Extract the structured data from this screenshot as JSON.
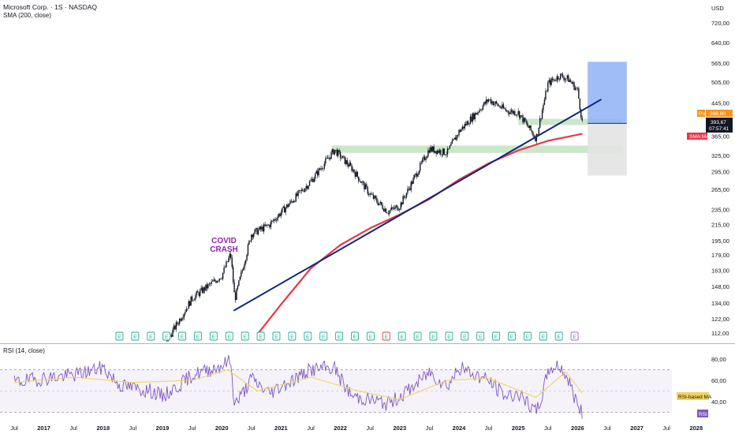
{
  "header": {
    "title": "Microsoft Corp. · 1S · NASDAQ",
    "sma_label": "SMA (200, close)",
    "rsi_label": "RSI (14, close)",
    "currency": "USD"
  },
  "colors": {
    "trendline": "#0d2a7a",
    "sma": "#e8364a",
    "candle": "#131722",
    "zone_green": "#b9dfb7",
    "target_box": "#8fb2f7",
    "stop_box": "#e3e3e3",
    "rsi_line": "#7e57c2",
    "rsi_ma": "#f2d45c",
    "annotation": "#8e24aa",
    "earnings": "#22ab94",
    "price_tag": "#f7931a",
    "sma_tag": "#e8364a"
  },
  "annotations": {
    "covid_line1": "COVID",
    "covid_line2": "CRASH"
  },
  "tags": {
    "pre_label": "Pre",
    "pre_value": "398,80",
    "last_price": "393,67",
    "countdown": "07:57:41",
    "sma_tag": "SMA:MA",
    "rsi_ma_tag": "RSI-based MA",
    "rsi_tag": "RSI"
  },
  "chart_data": {
    "type": "line",
    "title": "Microsoft Corp. · 1S · NASDAQ",
    "price_axis_ticks": [
      "720,00",
      "640,00",
      "565,00",
      "505,00",
      "445,00",
      "395,00",
      "365,00",
      "325,00",
      "295,00",
      "265,00",
      "235,00",
      "215,00",
      "195,00",
      "179,00",
      "163,00",
      "148,00",
      "134,00",
      "122,00",
      "112,00"
    ],
    "rsi_axis_ticks": [
      "80,00",
      "60,00",
      "40,00"
    ],
    "x_tick_labels": [
      "Jul",
      "2017",
      "Jul",
      "2018",
      "Jul",
      "2019",
      "Jul",
      "2020",
      "Jul",
      "2021",
      "Jul",
      "2022",
      "Jul",
      "2023",
      "Jul",
      "2024",
      "Jul",
      "2025",
      "Jul",
      "2026",
      "Jul",
      "2027",
      "Jul",
      "2028"
    ],
    "y_scale": "log",
    "price_series": {
      "name": "MSFT weekly close",
      "x": [
        2016.5,
        2017.0,
        2017.5,
        2018.0,
        2018.5,
        2019.0,
        2019.5,
        2020.0,
        2020.15,
        2020.22,
        2020.5,
        2020.8,
        2021.0,
        2021.5,
        2021.9,
        2022.2,
        2022.5,
        2022.8,
        2023.0,
        2023.5,
        2023.8,
        2024.0,
        2024.5,
        2024.8,
        2025.0,
        2025.3,
        2025.5,
        2025.7,
        2025.85,
        2026.0,
        2026.08
      ],
      "y": [
        52,
        63,
        72,
        92,
        101,
        102,
        138,
        158,
        180,
        137,
        203,
        214,
        231,
        278,
        336,
        300,
        257,
        232,
        240,
        338,
        330,
        375,
        455,
        425,
        420,
        360,
        500,
        525,
        513,
        480,
        394
      ]
    },
    "sma_200": {
      "name": "SMA (200, close)",
      "x": [
        2020.6,
        2021.0,
        2021.5,
        2022.0,
        2022.5,
        2023.0,
        2023.5,
        2024.0,
        2024.5,
        2025.0,
        2025.5,
        2026.08
      ],
      "y": [
        111,
        133,
        165,
        190,
        210,
        228,
        250,
        281,
        310,
        335,
        355,
        370
      ]
    },
    "trendline": {
      "name": "",
      "x": [
        2020.2,
        2026.4
      ],
      "y": [
        128,
        455
      ]
    },
    "support_zones": [
      {
        "x_start": 2025.0,
        "x_end": 2026.75,
        "y_low": 390,
        "y_high": 405
      },
      {
        "x_start": 2021.85,
        "x_end": 2026.75,
        "y_low": 330,
        "y_high": 345
      }
    ],
    "position": {
      "entry": 394,
      "target": 570,
      "stop": 288,
      "x_start": 2026.17,
      "x_end": 2026.83
    },
    "earnings_markers_count": 30,
    "rsi": {
      "name": "RSI (14, close)",
      "upper": 70,
      "lower": 30,
      "x": [
        2016.5,
        2017.0,
        2017.5,
        2018.0,
        2018.3,
        2018.8,
        2019.0,
        2019.5,
        2020.0,
        2020.15,
        2020.22,
        2020.5,
        2020.8,
        2021.0,
        2021.5,
        2021.9,
        2022.2,
        2022.5,
        2022.8,
        2023.0,
        2023.5,
        2023.8,
        2024.0,
        2024.5,
        2024.8,
        2025.0,
        2025.3,
        2025.5,
        2025.7,
        2025.85,
        2026.0,
        2026.08
      ],
      "y": [
        58,
        62,
        65,
        72,
        55,
        50,
        45,
        65,
        74,
        79,
        38,
        62,
        48,
        55,
        70,
        72,
        45,
        42,
        38,
        45,
        68,
        55,
        72,
        60,
        45,
        48,
        30,
        70,
        74,
        60,
        38,
        28
      ],
      "ma": {
        "name": "RSI-based MA",
        "x": [
          2016.5,
          2017.5,
          2018.5,
          2019.5,
          2020.1,
          2020.6,
          2021.5,
          2022.3,
          2023.0,
          2023.8,
          2024.5,
          2025.3,
          2025.8,
          2026.08
        ],
        "y": [
          58,
          63,
          58,
          60,
          70,
          50,
          63,
          50,
          42,
          60,
          62,
          44,
          68,
          48
        ]
      }
    }
  }
}
